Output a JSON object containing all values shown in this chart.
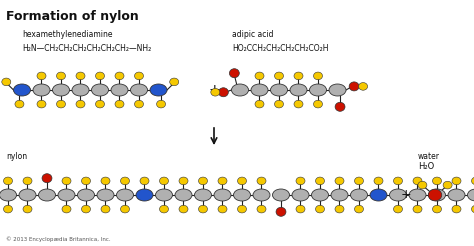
{
  "title": "Formation of nylon",
  "bg_color": "#ffffff",
  "label1": "hexamethylenediamine",
  "label2": "adipic acid",
  "label3": "nylon",
  "label4": "water",
  "formula1": "H₂N—CH₂CH₂CH₂CH₂CH₂CH₂—NH₂",
  "formula2": "HO₂CCH₂CH₂CH₂CH₂CO₂H",
  "formula_water": "H₂O",
  "copyright": "© 2013 Encyclopædia Britannica, Inc.",
  "gray": "#b0b0b0",
  "yellow": "#f5c800",
  "blue": "#2255cc",
  "red": "#cc1100",
  "dark": "#111111",
  "title_fs": 9,
  "label_fs": 5.5,
  "formula_fs": 5.5,
  "copy_fs": 4.0
}
